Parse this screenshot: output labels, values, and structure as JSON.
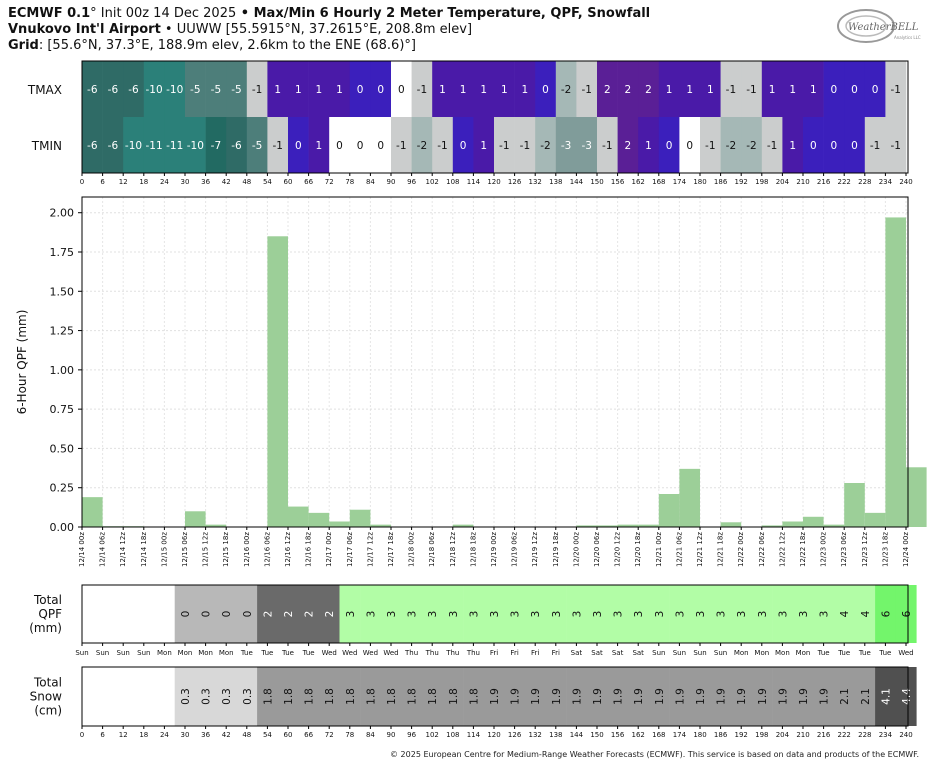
{
  "header": {
    "line1_model": "ECMWF 0.1",
    "line1_init": "° Init 00z 14 Dec 2025",
    "line1_sep": " • ",
    "line1_title": "Max/Min 6 Hourly 2 Meter Temperature, QPF, Snowfall",
    "line2_station": "Vnukovo Int'l Airport",
    "line2_rest": " • UUWW [55.5915°N, 37.2615°E, 208.8m elev]",
    "line3_grid": "Grid",
    "line3_rest": ": [55.6°N, 37.3°E, 188.9m elev, 2.6km to the ENE (68.6)°]"
  },
  "logo": {
    "text": "WeatherBELL",
    "sub": "Analytics LLC"
  },
  "copyright": "© 2025 European Centre for Medium-Range Weather Forecasts (ECMWF). This service is based on data and products of the ECMWF.",
  "colors": {
    "bar": "#9ccf98",
    "grid": "#e3e3e3",
    "total_qpf_light": "#b2fda6",
    "total_qpf_bright": "#73f56b",
    "gray_dark": "#6a6a6a",
    "gray_mid": "#b8b8b8"
  },
  "chart_data": [
    {
      "type": "heatmap",
      "rows": [
        "TMAX",
        "TMIN"
      ],
      "x_hours": [
        0,
        6,
        12,
        18,
        24,
        30,
        36,
        42,
        48,
        54,
        60,
        66,
        72,
        78,
        84,
        90,
        96,
        102,
        108,
        114,
        120,
        126,
        132,
        138,
        144,
        150,
        156,
        162,
        168,
        174,
        180,
        186,
        192,
        198,
        204,
        210,
        216,
        222,
        228,
        234,
        240
      ],
      "tmax": [
        -6,
        -6,
        -6,
        -10,
        -10,
        -5,
        -5,
        -5,
        -1,
        1,
        1,
        1,
        1,
        0,
        0,
        0,
        -1,
        1,
        1,
        1,
        1,
        1,
        0,
        -2,
        -1,
        2,
        2,
        2,
        1,
        1,
        1,
        -1,
        -1,
        1,
        1,
        1,
        0,
        0,
        0,
        -1
      ],
      "tmin": [
        -6,
        -6,
        -10,
        -11,
        -11,
        -10,
        -7,
        -6,
        -5,
        -1,
        0,
        1,
        0,
        0,
        0,
        -1,
        -2,
        -1,
        0,
        1,
        -1,
        -1,
        -2,
        -3,
        -3,
        -1,
        2,
        1,
        0,
        0,
        -1,
        -2,
        -2,
        -1,
        1,
        0,
        0,
        0,
        -1,
        -1
      ]
    },
    {
      "type": "bar",
      "ylabel": "6-Hour QPF (mm)",
      "ylim": [
        0,
        2.1
      ],
      "yticks": [
        "0.00",
        "0.25",
        "0.50",
        "0.75",
        "1.00",
        "1.25",
        "1.50",
        "1.75",
        "2.00"
      ],
      "grid": true,
      "categories": [
        "12/14 00z",
        "12/14 06z",
        "12/14 12z",
        "12/14 18z",
        "12/15 00z",
        "12/15 06z",
        "12/15 12z",
        "12/15 18z",
        "12/16 00z",
        "12/16 06z",
        "12/16 12z",
        "12/16 18z",
        "12/17 00z",
        "12/17 06z",
        "12/17 12z",
        "12/17 18z",
        "12/18 00z",
        "12/18 06z",
        "12/18 12z",
        "12/18 18z",
        "12/19 00z",
        "12/19 06z",
        "12/19 12z",
        "12/19 18z",
        "12/20 00z",
        "12/20 06z",
        "12/20 12z",
        "12/20 18z",
        "12/21 00z",
        "12/21 06z",
        "12/21 12z",
        "12/21 18z",
        "12/22 00z",
        "12/22 06z",
        "12/22 12z",
        "12/22 18z",
        "12/23 00z",
        "12/23 06z",
        "12/23 12z",
        "12/23 18z",
        "12/24 00z"
      ],
      "values": [
        0.19,
        0.005,
        0.005,
        0,
        0,
        0.1,
        0.015,
        0,
        0,
        1.85,
        0.13,
        0.09,
        0.035,
        0.11,
        0.015,
        0,
        0,
        0,
        0.015,
        0,
        0,
        0,
        0,
        0,
        0.01,
        0.01,
        0.015,
        0.015,
        0.21,
        0.37,
        0,
        0.03,
        0,
        0.01,
        0.035,
        0.065,
        0.015,
        0.28,
        0.09,
        1.97,
        0.38
      ]
    },
    {
      "type": "table",
      "label": [
        "Total",
        "QPF",
        "(mm)"
      ],
      "values": [
        null,
        null,
        null,
        null,
        null,
        "0",
        "0",
        "0",
        "0",
        "2",
        "2",
        "2",
        "2",
        "3",
        "3",
        "3",
        "3",
        "3",
        "3",
        "3",
        "3",
        "3",
        "3",
        "3",
        "3",
        "3",
        "3",
        "3",
        "3",
        "3",
        "3",
        "3",
        "3",
        "3",
        "3",
        "3",
        "3",
        "4",
        "4",
        "6",
        "6"
      ]
    },
    {
      "type": "table",
      "label": [
        "Total",
        "Snow",
        "(cm)"
      ],
      "values": [
        null,
        null,
        null,
        null,
        null,
        "0.3",
        "0.3",
        "0.3",
        "0.3",
        "1.8",
        "1.8",
        "1.8",
        "1.8",
        "1.8",
        "1.8",
        "1.8",
        "1.8",
        "1.8",
        "1.8",
        "1.8",
        "1.9",
        "1.9",
        "1.9",
        "1.9",
        "1.9",
        "1.9",
        "1.9",
        "1.9",
        "1.9",
        "1.9",
        "1.9",
        "1.9",
        "1.9",
        "1.9",
        "1.9",
        "1.9",
        "1.9",
        "2.1",
        "2.1",
        "4.1",
        "4.4"
      ]
    }
  ],
  "day_labels": [
    "Sun",
    "Sun",
    "Sun",
    "Sun",
    "Mon",
    "Mon",
    "Mon",
    "Mon",
    "Tue",
    "Tue",
    "Tue",
    "Tue",
    "Wed",
    "Wed",
    "Wed",
    "Wed",
    "Thu",
    "Thu",
    "Thu",
    "Thu",
    "Fri",
    "Fri",
    "Fri",
    "Fri",
    "Sat",
    "Sat",
    "Sat",
    "Sat",
    "Sun",
    "Sun",
    "Sun",
    "Sun",
    "Mon",
    "Mon",
    "Mon",
    "Mon",
    "Tue",
    "Tue",
    "Tue",
    "Tue",
    "Wed"
  ]
}
